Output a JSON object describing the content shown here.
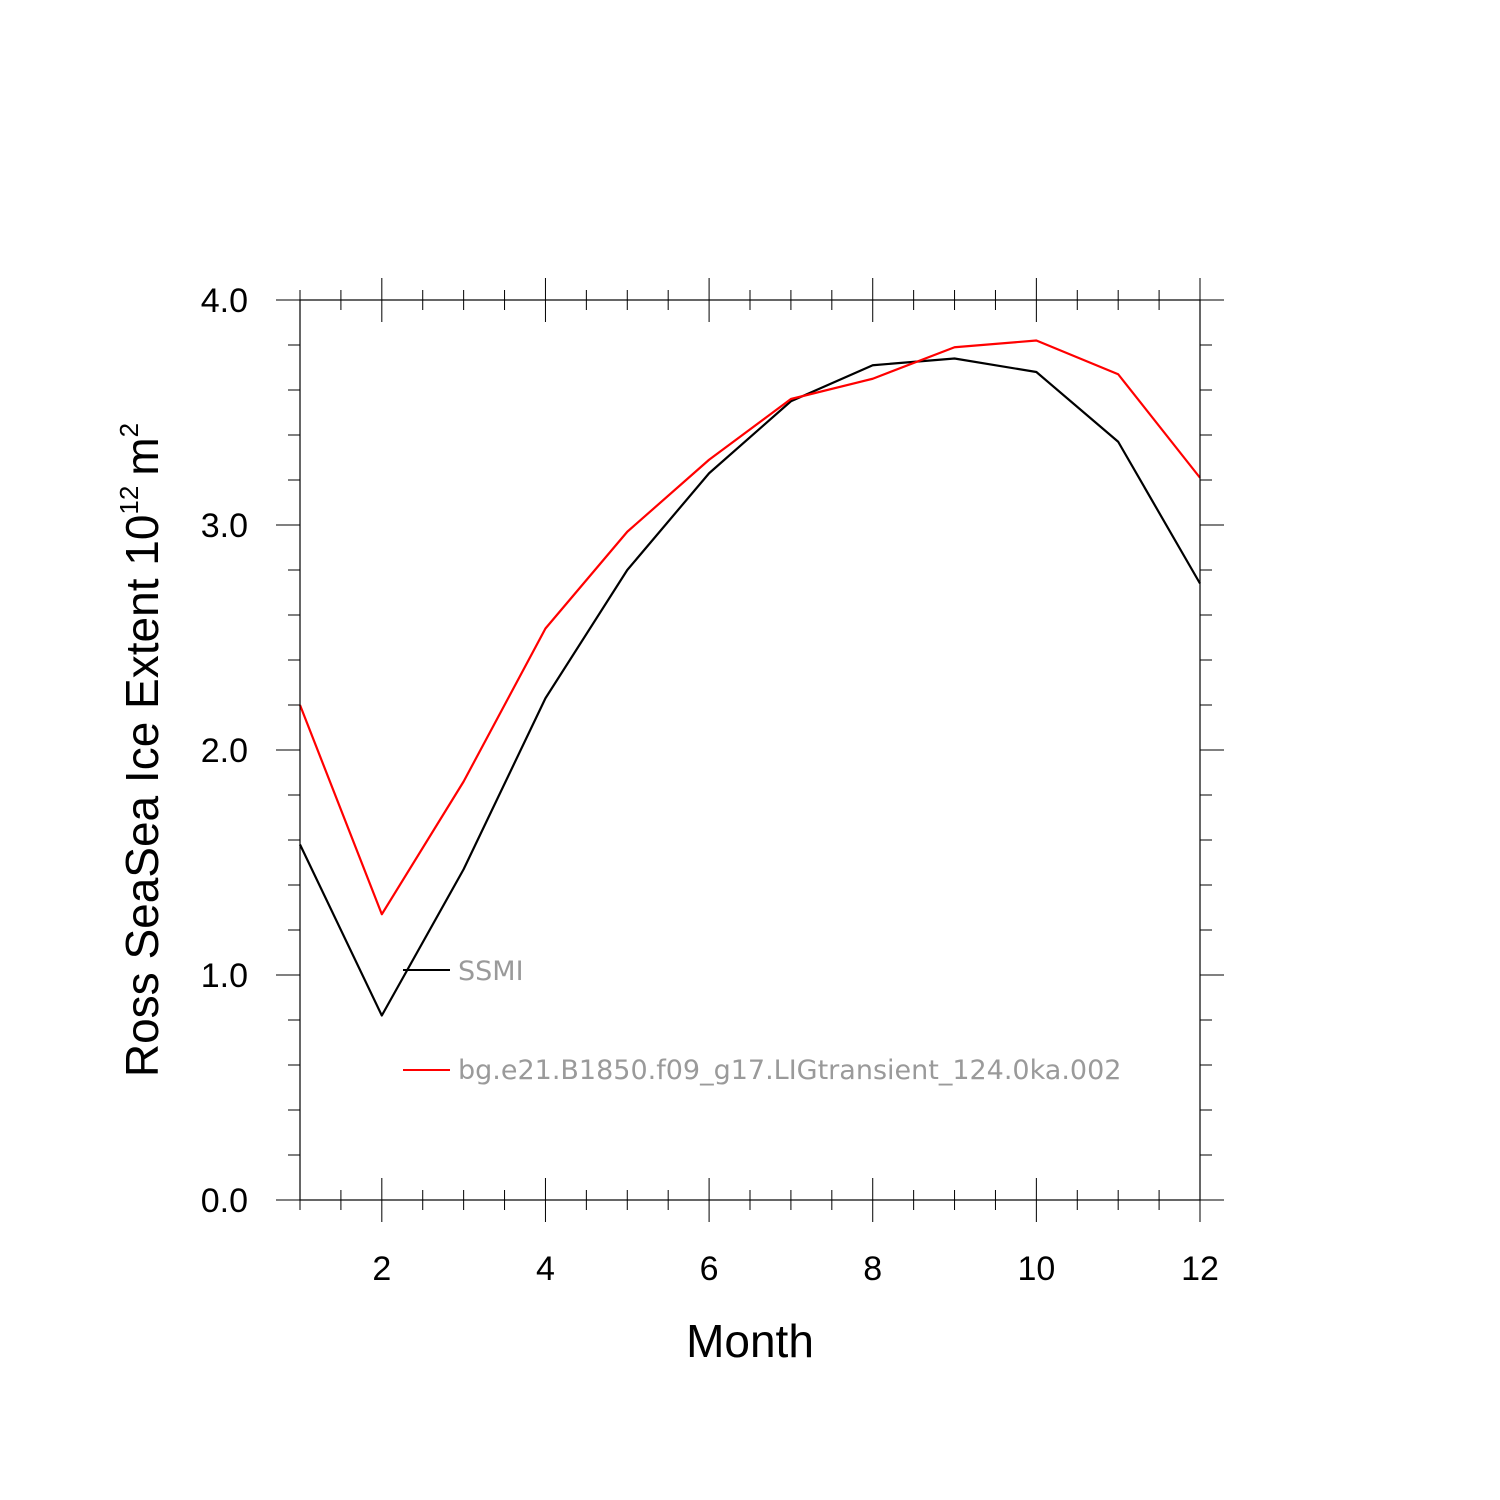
{
  "chart_data": {
    "type": "line",
    "xlabel": "Month",
    "ylabel_main": "Ross SeaSea Ice Extent 10",
    "ylabel_exp": "12",
    "ylabel_unit": "m",
    "ylabel_unit_exp": "2",
    "xlim": [
      1,
      12
    ],
    "ylim": [
      0,
      4.0
    ],
    "x_ticks": [
      2,
      4,
      6,
      8,
      10,
      12
    ],
    "x_tick_labels": [
      "2",
      "4",
      "6",
      "8",
      "10",
      "12"
    ],
    "y_ticks": [
      0.0,
      1.0,
      2.0,
      3.0,
      4.0
    ],
    "y_tick_labels": [
      "0.0",
      "1.0",
      "2.0",
      "3.0",
      "4.0"
    ],
    "grid": false,
    "legend_position": "inside-lower-left",
    "x": [
      1,
      2,
      3,
      4,
      5,
      6,
      7,
      8,
      9,
      10,
      11,
      12
    ],
    "series": [
      {
        "name": "SSMI",
        "color": "#000000",
        "values": [
          1.58,
          0.82,
          1.47,
          2.23,
          2.8,
          3.23,
          3.55,
          3.71,
          3.74,
          3.68,
          3.37,
          2.74
        ]
      },
      {
        "name": "bg.e21.B1850.f09_g17.LIGtransient_124.0ka.002",
        "color": "#ff0000",
        "values": [
          2.2,
          1.27,
          1.86,
          2.54,
          2.97,
          3.29,
          3.56,
          3.65,
          3.79,
          3.82,
          3.67,
          3.21
        ]
      }
    ]
  }
}
